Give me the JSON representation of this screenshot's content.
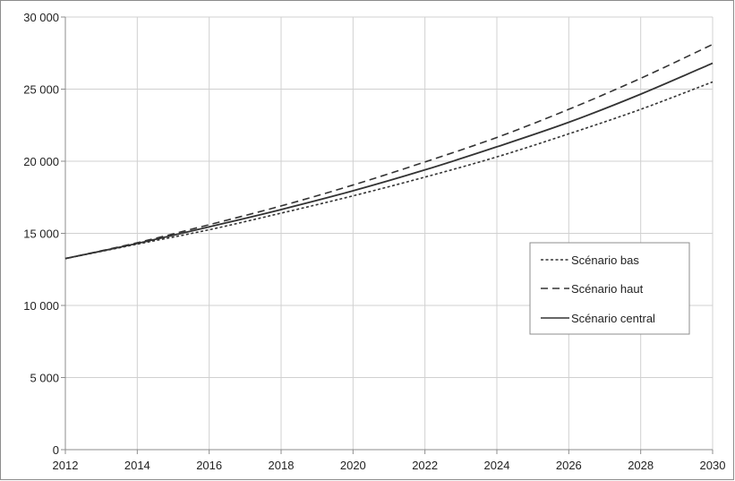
{
  "chart_data": {
    "type": "line",
    "title": "",
    "xlabel": "",
    "ylabel": "",
    "xlim": [
      2012,
      2030
    ],
    "ylim": [
      0,
      30000
    ],
    "x_ticks": [
      2012,
      2014,
      2016,
      2018,
      2020,
      2022,
      2024,
      2026,
      2028,
      2030
    ],
    "x_tick_labels": [
      "2012",
      "2014",
      "2016",
      "2018",
      "2020",
      "2022",
      "2024",
      "2026",
      "2028",
      "2030"
    ],
    "y_ticks": [
      0,
      5000,
      10000,
      15000,
      20000,
      25000,
      30000
    ],
    "y_tick_labels": [
      "0",
      "5 000",
      "10 000",
      "15 000",
      "20 000",
      "25 000",
      "30 000"
    ],
    "grid": true,
    "legend_position": "right",
    "x": [
      2012,
      2014,
      2016,
      2018,
      2020,
      2022,
      2024,
      2026,
      2028,
      2030
    ],
    "series": [
      {
        "name": "Scénario bas",
        "style": "dotted",
        "color": "#333333",
        "values": [
          13250,
          14250,
          15250,
          16400,
          17600,
          18900,
          20300,
          21900,
          23600,
          25500
        ]
      },
      {
        "name": "Scénario haut",
        "style": "dashed",
        "color": "#333333",
        "values": [
          13250,
          14350,
          15600,
          16900,
          18350,
          19950,
          21650,
          23600,
          25750,
          28100
        ]
      },
      {
        "name": "Scénario central",
        "style": "solid",
        "color": "#333333",
        "values": [
          13250,
          14300,
          15450,
          16650,
          17950,
          19400,
          21000,
          22700,
          24650,
          26800
        ]
      }
    ]
  }
}
